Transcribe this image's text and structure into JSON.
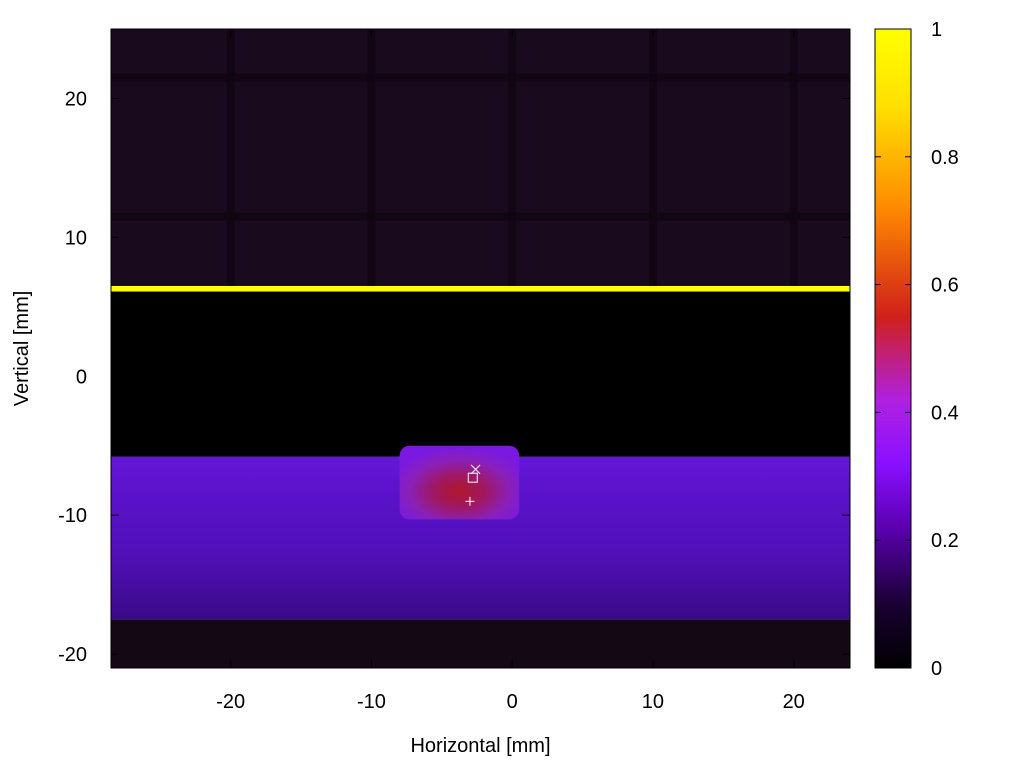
{
  "chart_data": {
    "type": "heatmap",
    "title": "",
    "xlabel": "Horizontal [mm]",
    "ylabel": "Vertical [mm]",
    "xlim": [
      -28.5,
      24
    ],
    "ylim": [
      -21,
      25
    ],
    "x_ticks": [
      {
        "value": -20,
        "label": "-20"
      },
      {
        "value": -10,
        "label": "-10"
      },
      {
        "value": 0,
        "label": "0"
      },
      {
        "value": 10,
        "label": "10"
      },
      {
        "value": 20,
        "label": "20"
      }
    ],
    "y_ticks": [
      {
        "value": -20,
        "label": "-20"
      },
      {
        "value": -10,
        "label": "-10"
      },
      {
        "value": 0,
        "label": "0"
      },
      {
        "value": 10,
        "label": "10"
      },
      {
        "value": 20,
        "label": "20"
      }
    ],
    "colorbar": {
      "range": [
        0,
        1
      ],
      "ticks": [
        {
          "value": 0,
          "label": "0"
        },
        {
          "value": 0.2,
          "label": "0.2"
        },
        {
          "value": 0.4,
          "label": "0.4"
        },
        {
          "value": 0.6,
          "label": "0.6"
        },
        {
          "value": 0.8,
          "label": "0.8"
        },
        {
          "value": 1,
          "label": "1"
        }
      ],
      "palette": [
        "#000000",
        "#1a0033",
        "#5a00b0",
        "#8a10ff",
        "#b020e0",
        "#d0201a",
        "#ff8a00",
        "#ffe000",
        "#ffff00"
      ]
    },
    "regions": [
      {
        "name": "upper-background",
        "x": [
          -28.5,
          24
        ],
        "y": [
          6.5,
          25
        ],
        "intensity": 0.04
      },
      {
        "name": "bright-line",
        "x": [
          -28.5,
          24
        ],
        "y": [
          6.1,
          6.5
        ],
        "intensity": 1.0
      },
      {
        "name": "dark-band",
        "x": [
          -28.5,
          24
        ],
        "y": [
          -5.8,
          6.1
        ],
        "intensity": 0.0
      },
      {
        "name": "beam-band",
        "x": [
          -28.5,
          24
        ],
        "y": [
          -17.5,
          -5.8
        ],
        "intensity": 0.3
      },
      {
        "name": "lower-background",
        "x": [
          -28.5,
          24
        ],
        "y": [
          -21,
          -17.5
        ],
        "intensity": 0.03
      },
      {
        "name": "beam-spot",
        "x": [
          -8,
          0.5
        ],
        "y": [
          -10.3,
          -5
        ],
        "intensity": 0.48
      }
    ],
    "markers": [
      {
        "symbol": "x",
        "x": [
          -2.6
        ],
        "y": [
          -6.7
        ]
      },
      {
        "symbol": "square",
        "x": [
          -2.8
        ],
        "y": [
          -7.3
        ]
      },
      {
        "symbol": "+",
        "x": [
          -3.0
        ],
        "y": [
          -9.0
        ]
      }
    ]
  }
}
